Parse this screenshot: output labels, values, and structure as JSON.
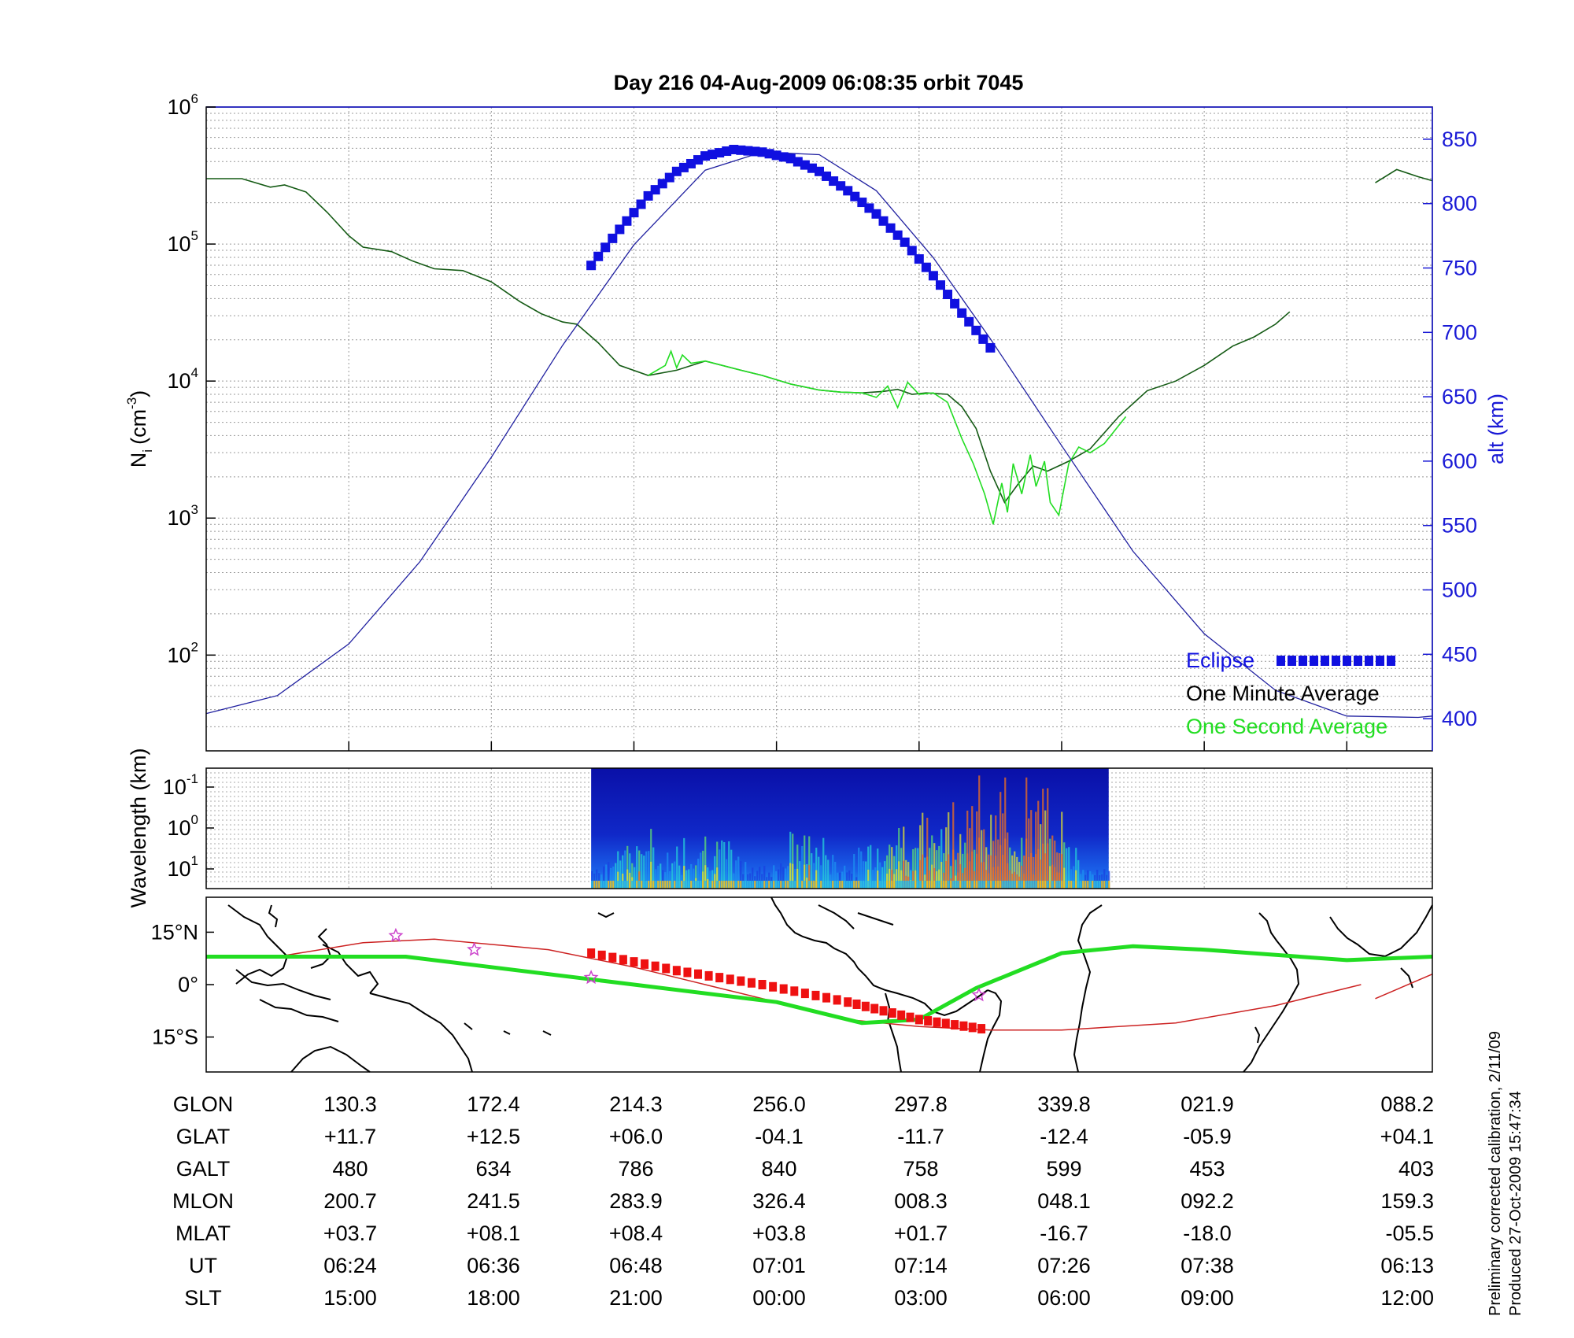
{
  "title": "Day 216  04-Aug-2009 06:08:35   orbit 7045",
  "colors": {
    "eclipse": "#1010e0",
    "alt_line": "#2020a0",
    "one_minute": "#145a14",
    "one_second": "#22dd22",
    "ground_track": "#22dd22",
    "orbit_track": "#cc2222",
    "eclipse_track": "#ee1111",
    "star": "#cc44cc",
    "right_axis": "#1a1ad6"
  },
  "chart_data": [
    {
      "id": "density",
      "type": "line",
      "ylabel_main": "N",
      "ylabel_sub": "i",
      "ylabel_unit": "(cm",
      "ylabel_unit_sup": "-3",
      "ylabel_unit_close": ")",
      "y_log_ticks": [
        {
          "base": "10",
          "exp": "2",
          "value": 100
        },
        {
          "base": "10",
          "exp": "3",
          "value": 1000
        },
        {
          "base": "10",
          "exp": "4",
          "value": 10000
        },
        {
          "base": "10",
          "exp": "5",
          "value": 100000
        },
        {
          "base": "10",
          "exp": "6",
          "value": 1000000
        }
      ],
      "ylim": [
        20,
        1000000
      ],
      "y_scale": "log",
      "y2label": "alt (km)",
      "y2lim": [
        375,
        875
      ],
      "y2_ticks": [
        "400",
        "450",
        "500",
        "550",
        "600",
        "650",
        "700",
        "750",
        "800",
        "850"
      ],
      "xlim": [
        0,
        8.6
      ],
      "grid": true,
      "series": [
        {
          "name": "One Minute Average",
          "style": "line",
          "x": [
            0,
            0.25,
            0.45,
            0.55,
            0.7,
            0.85,
            1.0,
            1.1,
            1.3,
            1.45,
            1.6,
            1.8,
            2.0,
            2.2,
            2.35,
            2.5,
            2.6,
            2.75,
            2.9,
            3.1,
            3.3,
            3.5,
            3.75,
            3.9,
            4.1,
            4.3,
            4.45,
            4.6,
            4.75,
            4.85,
            4.95,
            5.05,
            5.2,
            5.3,
            5.4,
            5.5,
            5.6,
            5.7,
            5.8,
            5.9,
            6.05,
            6.2,
            6.4,
            6.6,
            6.8,
            7.0,
            7.2,
            7.35,
            7.5,
            7.6
          ],
          "y": [
            300000,
            300000,
            260000,
            270000,
            240000,
            170000,
            115000,
            95000,
            88000,
            75000,
            66000,
            64000,
            53000,
            38000,
            31000,
            27000,
            26000,
            19000,
            13000,
            11000,
            12000,
            14000,
            12000,
            11000,
            9500,
            8600,
            8300,
            8200,
            8400,
            8700,
            8000,
            8200,
            8000,
            6500,
            4500,
            2200,
            1300,
            1800,
            2400,
            2200,
            2600,
            3200,
            5500,
            8500,
            10000,
            13000,
            18000,
            21000,
            26000,
            32000
          ]
        },
        {
          "name": "One Minute Average tail",
          "style": "line",
          "x": [
            8.2,
            8.35,
            8.5,
            8.6
          ],
          "y": [
            280000,
            350000,
            310000,
            290000
          ]
        },
        {
          "name": "One Second Average",
          "style": "line",
          "x": [
            3.1,
            3.22,
            3.26,
            3.3,
            3.34,
            3.4,
            3.5,
            3.75,
            3.9,
            4.1,
            4.3,
            4.45,
            4.6,
            4.7,
            4.78,
            4.85,
            4.92,
            5.0,
            5.1,
            5.2,
            5.3,
            5.38,
            5.46,
            5.52,
            5.58,
            5.62,
            5.66,
            5.72,
            5.78,
            5.82,
            5.88,
            5.92,
            5.98,
            6.05,
            6.12,
            6.2,
            6.3,
            6.45
          ],
          "y": [
            11000,
            13000,
            16500,
            12500,
            15500,
            13500,
            14000,
            12000,
            11000,
            9500,
            8600,
            8300,
            8200,
            7600,
            9200,
            6400,
            9800,
            8000,
            8200,
            7000,
            3800,
            2500,
            1500,
            900,
            1800,
            1100,
            2500,
            1500,
            2900,
            1700,
            2600,
            1300,
            1050,
            2500,
            3300,
            3000,
            3500,
            5500
          ]
        },
        {
          "name": "alt",
          "style": "line",
          "axis": "right",
          "x": [
            0,
            0.5,
            1.0,
            1.5,
            2.0,
            2.5,
            3.0,
            3.5,
            3.9,
            4.3,
            4.7,
            5.1,
            5.5,
            6.0,
            6.5,
            7.0,
            7.5,
            8.0,
            8.5,
            8.6
          ],
          "y": [
            404,
            418,
            458,
            522,
            603,
            690,
            768,
            826,
            840,
            838,
            810,
            758,
            695,
            612,
            530,
            466,
            422,
            402,
            401,
            402
          ]
        },
        {
          "name": "Eclipse",
          "style": "markers",
          "axis": "right",
          "x": [
            2.7,
            2.9,
            3.1,
            3.3,
            3.5,
            3.7,
            3.9,
            4.1,
            4.3,
            4.5,
            4.7,
            4.9,
            5.1,
            5.3,
            5.5
          ],
          "y": [
            752,
            780,
            806,
            825,
            837,
            842,
            840,
            835,
            825,
            810,
            792,
            770,
            744,
            715,
            688
          ]
        }
      ],
      "legend": [
        {
          "label": "Eclipse",
          "color": "#1010e0",
          "marker": "squares"
        },
        {
          "label": "One Minute Average",
          "color": "#000000"
        },
        {
          "label": "One Second Average",
          "color": "#22dd22"
        }
      ],
      "legend_position": "bottom-right"
    },
    {
      "id": "spectrogram",
      "type": "heatmap",
      "ylabel": "Wavelength (km)",
      "y_log_ticks": [
        {
          "base": "10",
          "exp": "-1"
        },
        {
          "base": "10",
          "exp": "0"
        },
        {
          "base": "10",
          "exp": "1"
        }
      ],
      "x_range": [
        2.7,
        6.33
      ],
      "intensity_peaks": [
        {
          "x": 3.0,
          "level": 0.45
        },
        {
          "x": 3.5,
          "level": 0.5
        },
        {
          "x": 4.2,
          "level": 0.45
        },
        {
          "x": 4.8,
          "level": 0.55
        },
        {
          "x": 5.2,
          "level": 0.75
        },
        {
          "x": 5.55,
          "level": 0.95
        },
        {
          "x": 5.9,
          "level": 0.75
        }
      ],
      "grid": true
    },
    {
      "id": "map",
      "type": "map",
      "y_ticks": [
        "15°N",
        "0°",
        "15°S"
      ],
      "ylim": [
        -25,
        25
      ],
      "ground_track": {
        "x": [
          0,
          1.4,
          2.0,
          3.0,
          4.0,
          4.6,
          5.0,
          5.4,
          6.0,
          6.5,
          7.0,
          8.0,
          8.6
        ],
        "y": [
          8,
          8,
          5,
          0,
          -5,
          -11,
          -10,
          -1,
          9,
          11,
          10,
          7,
          8
        ]
      },
      "orbit_track": {
        "x": [
          0.5,
          1.1,
          1.6,
          2.4,
          3.0,
          3.5,
          4.0,
          4.5,
          5.0,
          5.5,
          6.0,
          6.8,
          7.5,
          8.1
        ],
        "y": [
          8,
          12,
          13,
          10,
          5,
          0,
          -5,
          -10,
          -12,
          -13,
          -13,
          -11,
          -6,
          0
        ]
      },
      "orbit_track_end": {
        "x": [
          8.2,
          8.6
        ],
        "y": [
          -4,
          3
        ]
      },
      "eclipse_track": {
        "x": [
          2.7,
          3.3,
          3.9,
          4.5,
          5.0,
          5.5
        ],
        "y": [
          9,
          4,
          0,
          -5,
          -10,
          -13
        ]
      },
      "stars": [
        {
          "x": 1.33,
          "y": 14
        },
        {
          "x": 1.88,
          "y": 10
        },
        {
          "x": 2.7,
          "y": 2
        },
        {
          "x": 5.42,
          "y": -3
        }
      ]
    }
  ],
  "table": {
    "rows": [
      {
        "label": "GLON",
        "values": [
          "130.3",
          "172.4",
          "214.3",
          "256.0",
          "297.8",
          "339.8",
          "021.9",
          "088.2"
        ]
      },
      {
        "label": "GLAT",
        "values": [
          "+11.7",
          "+12.5",
          "+06.0",
          "-04.1",
          "-11.7",
          "-12.4",
          "-05.9",
          "+04.1"
        ]
      },
      {
        "label": "GALT",
        "values": [
          "480",
          "634",
          "786",
          "840",
          "758",
          "599",
          "453",
          "403"
        ]
      },
      {
        "label": "MLON",
        "values": [
          "200.7",
          "241.5",
          "283.9",
          "326.4",
          "008.3",
          "048.1",
          "092.2",
          "159.3"
        ]
      },
      {
        "label": "MLAT",
        "values": [
          "+03.7",
          "+08.1",
          "+08.4",
          "+03.8",
          "+01.7",
          "-16.7",
          "-18.0",
          "-05.5"
        ]
      },
      {
        "label": "UT",
        "values": [
          "06:24",
          "06:36",
          "06:48",
          "07:01",
          "07:14",
          "07:26",
          "07:38",
          "06:13"
        ]
      },
      {
        "label": "SLT",
        "values": [
          "15:00",
          "18:00",
          "21:00",
          "00:00",
          "03:00",
          "06:00",
          "09:00",
          "12:00"
        ]
      }
    ]
  },
  "notes": {
    "line1": "Preliminary corrected calibration, 2/11/09",
    "line2": "Produced 27-Oct-2009 15:47:34"
  }
}
